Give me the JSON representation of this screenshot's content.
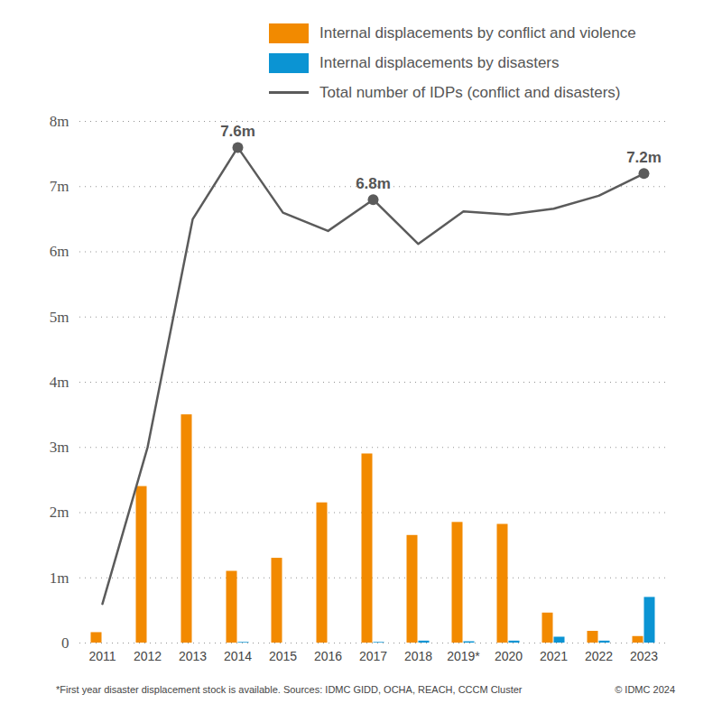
{
  "chart_data": {
    "type": "bar",
    "categories": [
      "2011",
      "2012",
      "2013",
      "2014",
      "2015",
      "2016",
      "2017",
      "2018",
      "2019*",
      "2020",
      "2021",
      "2022",
      "2023"
    ],
    "series": [
      {
        "name": "Internal displacements by conflict and violence",
        "color": "#f28a00",
        "type": "bar",
        "values": [
          0.16,
          2.4,
          3.5,
          1.1,
          1.3,
          2.15,
          2.9,
          1.65,
          1.85,
          1.82,
          0.46,
          0.18,
          0.1
        ]
      },
      {
        "name": "Internal displacements by disasters",
        "color": "#0b94d3",
        "type": "bar",
        "values": [
          0,
          0,
          0,
          0.01,
          0,
          0,
          0.01,
          0.03,
          0.02,
          0.03,
          0.09,
          0.03,
          0.7
        ]
      },
      {
        "name": "Total number of IDPs (conflict and disasters)",
        "color": "#5b5b5b",
        "type": "line",
        "marker": "none",
        "values": [
          0.6,
          3.0,
          6.5,
          7.6,
          6.6,
          6.32,
          6.8,
          6.12,
          6.62,
          6.57,
          6.66,
          6.86,
          7.2
        ]
      }
    ],
    "annotations": [
      {
        "category": "2014",
        "value": 7.6,
        "label": "7.6m"
      },
      {
        "category": "2017",
        "value": 6.8,
        "label": "6.8m"
      },
      {
        "category": "2023",
        "value": 7.2,
        "label": "7.2m"
      }
    ],
    "ylim": [
      0,
      8
    ],
    "yticks": [
      0,
      {
        "value": 1,
        "label": "1m"
      },
      {
        "value": 2,
        "label": "2m"
      },
      {
        "value": 3,
        "label": "3m"
      },
      {
        "value": 4,
        "label": "4m"
      },
      {
        "value": 5,
        "label": "5m"
      },
      {
        "value": 6,
        "label": "6m"
      },
      {
        "value": 7,
        "label": "7m"
      },
      {
        "value": 8,
        "label": "8m"
      }
    ],
    "grid": true,
    "legend": "top-right",
    "caption": "*First year disaster displacement stock is available. Sources: IDMC GIDD, OCHA, REACH, CCCM Cluster",
    "credit": "© IDMC 2024"
  }
}
